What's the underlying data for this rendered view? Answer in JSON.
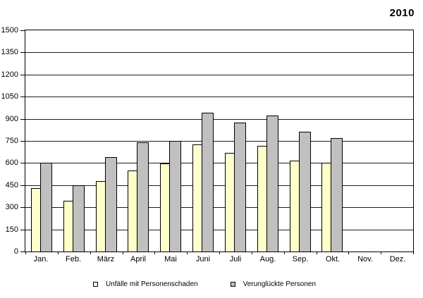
{
  "title": "2010",
  "chart_data": {
    "type": "bar",
    "title": "2010",
    "categories": [
      "Jan.",
      "Feb.",
      "März",
      "April",
      "Mai",
      "Juni",
      "Juli",
      "Aug.",
      "Sep.",
      "Okt.",
      "Nov.",
      "Dez."
    ],
    "series": [
      {
        "name": "Unfälle mit Personenschaden",
        "color": "#FFFFCC",
        "values": [
          430,
          345,
          480,
          550,
          595,
          725,
          670,
          715,
          615,
          600,
          null,
          null
        ]
      },
      {
        "name": "Verunglückte Personen",
        "color": "#C0C0C0",
        "values": [
          600,
          450,
          640,
          740,
          750,
          940,
          875,
          920,
          810,
          770,
          null,
          null
        ]
      }
    ],
    "xlabel": "",
    "ylabel": "",
    "ylim": [
      0,
      1500
    ],
    "yticks": [
      0,
      150,
      300,
      450,
      600,
      750,
      900,
      1050,
      1200,
      1350,
      1500
    ],
    "grid": true,
    "legend_position": "bottom",
    "colors": {
      "frame": "#000000",
      "gridline": "#1c1c1c",
      "background": "#ffffff"
    }
  }
}
